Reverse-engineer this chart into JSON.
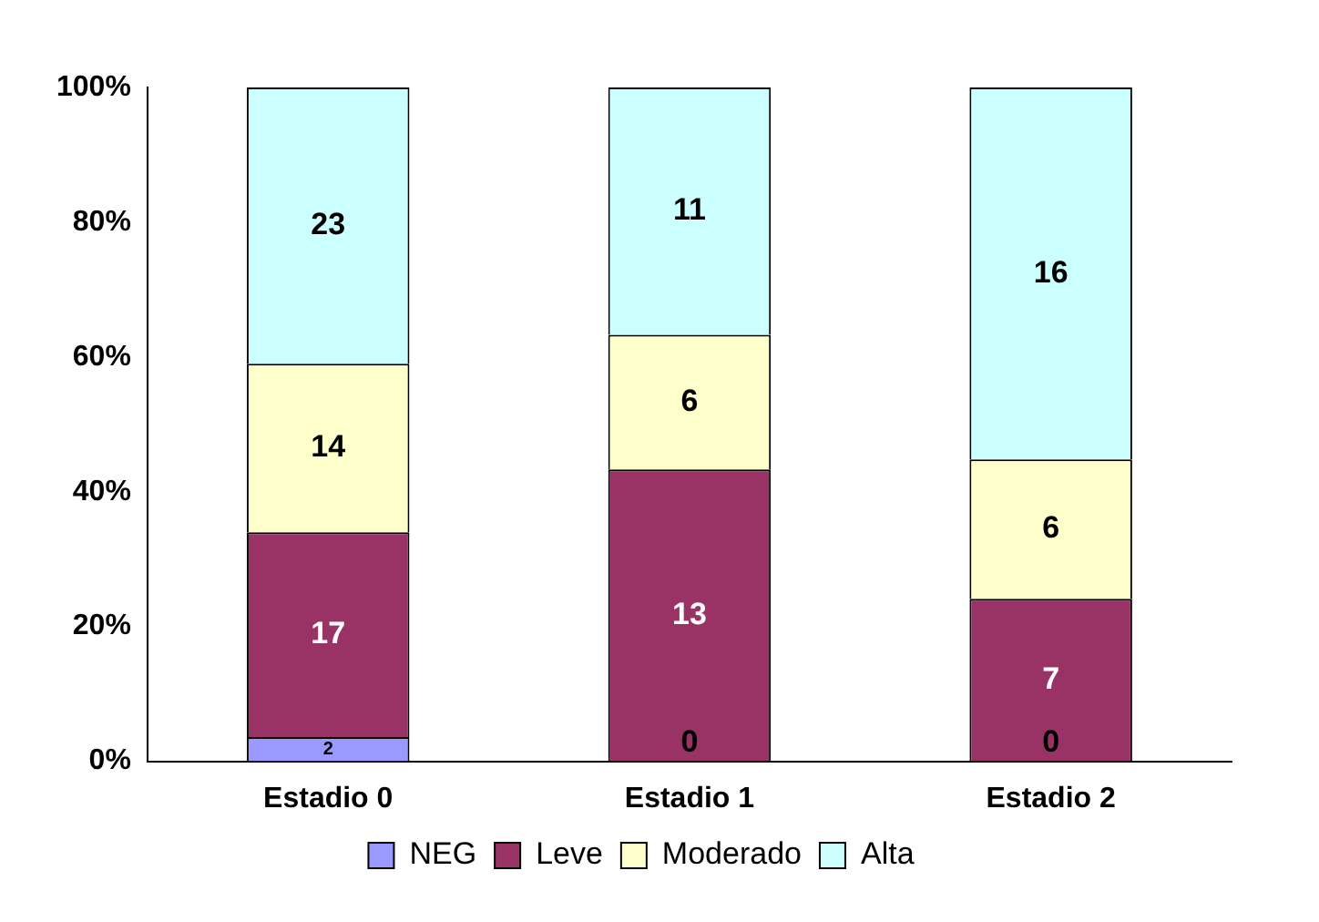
{
  "chart_data": {
    "type": "bar",
    "stacked": true,
    "categories": [
      "Estadio 0",
      "Estadio 1",
      "Estadio 2"
    ],
    "series": [
      {
        "name": "NEG",
        "color": "#9999ff",
        "values": [
          3.6,
          0,
          0
        ]
      },
      {
        "name": "Leve",
        "color": "#993366",
        "values": [
          30.4,
          43.3,
          24.1
        ]
      },
      {
        "name": "Moderado",
        "color": "#ffffcc",
        "values": [
          25.0,
          20.0,
          20.7
        ]
      },
      {
        "name": "Alta",
        "color": "#ccffff",
        "values": [
          41.0,
          36.7,
          55.2
        ]
      }
    ],
    "annotations": [
      "2",
      "17",
      "14",
      "23",
      "0",
      "13",
      "6",
      "11",
      "0",
      "7",
      "6",
      "16"
    ],
    "ylim": [
      0,
      100
    ],
    "yticks": [
      {
        "value": 0,
        "label": "0%"
      },
      {
        "value": 20,
        "label": "20%"
      },
      {
        "value": 40,
        "label": "40%"
      },
      {
        "value": 60,
        "label": "60%"
      },
      {
        "value": 80,
        "label": "80%"
      },
      {
        "value": 100,
        "label": "100%"
      }
    ],
    "grid": false,
    "legend": "bottom"
  }
}
